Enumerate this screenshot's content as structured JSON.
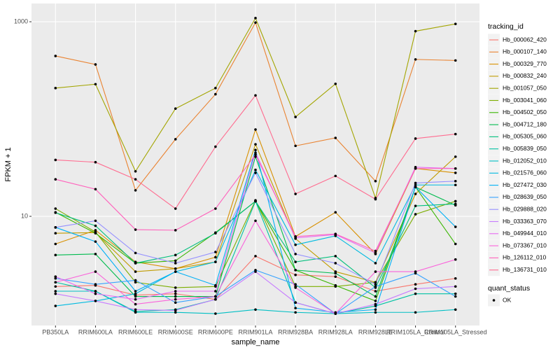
{
  "chart_data": {
    "type": "line",
    "log_y": true,
    "grid": true,
    "x_label": "sample_name",
    "y_label": "FPKM + 1",
    "legend_title": "tracking_id",
    "shape_legend": {
      "title": "quant_status",
      "items": [
        "OK"
      ]
    },
    "point_color": "#000000",
    "categories": [
      "PB350LA",
      "RRIM600LA",
      "RRIM600LE",
      "RRIM600SE",
      "RRIM600PE",
      "RRIM901LA",
      "RRIM928BA",
      "RRIM928LA",
      "RRIM928LE",
      "RRIM105LA_Control",
      "RRIM105LA_Stressed"
    ],
    "ylim": [
      0.755,
      1540
    ],
    "yticks": [
      10,
      1000
    ],
    "series": [
      {
        "name": "Hb_000062_420",
        "color": "#F8766D",
        "values": [
          1.9,
          1.95,
          1.55,
          1.6,
          1.4,
          3.9,
          2.5,
          2.4,
          1.7,
          2.0,
          2.3
        ]
      },
      {
        "name": "Hb_000107_140",
        "color": "#EA8331",
        "values": [
          445,
          364,
          18.5,
          62,
          180,
          980,
          53,
          64,
          23,
          410,
          400
        ]
      },
      {
        "name": "Hb_000329_770",
        "color": "#D89000",
        "values": [
          5.2,
          7.2,
          3.4,
          2.9,
          3.8,
          78,
          6.2,
          11,
          4.1,
          31,
          28
        ]
      },
      {
        "name": "Hb_000832_240",
        "color": "#C09B00",
        "values": [
          6.7,
          6.8,
          2.7,
          2.9,
          3.4,
          55,
          5.9,
          2.7,
          2.1,
          17,
          41
        ]
      },
      {
        "name": "Hb_001057_050",
        "color": "#A3A500",
        "values": [
          208,
          228,
          29,
          128,
          208,
          1090,
          105,
          230,
          15.4,
          800,
          950
        ]
      },
      {
        "name": "Hb_003041_060",
        "color": "#7CAE00",
        "values": [
          12,
          6.9,
          2.1,
          1.85,
          1.9,
          14.6,
          1.9,
          1.9,
          2.1,
          10.5,
          14.3
        ]
      },
      {
        "name": "Hb_004502_050",
        "color": "#39B600",
        "values": [
          11,
          6.7,
          3.3,
          3.5,
          6.8,
          14.3,
          2.8,
          1.95,
          1.35,
          20,
          5.2
        ]
      },
      {
        "name": "Hb_004712_180",
        "color": "#00BB4E",
        "values": [
          4.0,
          4.1,
          1.5,
          1.5,
          1.5,
          41,
          2.8,
          2.6,
          1.5,
          20,
          13
        ]
      },
      {
        "name": "Hb_005305_060",
        "color": "#00BF7D",
        "values": [
          10.9,
          8.0,
          3.3,
          4.0,
          6.7,
          14.3,
          3.4,
          3.9,
          1.85,
          12.8,
          13.4
        ]
      },
      {
        "name": "Hb_005839_050",
        "color": "#00C1A3",
        "values": [
          2.1,
          1.7,
          1.05,
          1.1,
          1.4,
          14.3,
          1.3,
          1.0,
          1.2,
          1.6,
          1.6
        ]
      },
      {
        "name": "Hb_012052_010",
        "color": "#00BFC4",
        "values": [
          1.7,
          1.7,
          1.03,
          1.03,
          1.0,
          1.1,
          1.03,
          1.0,
          1.03,
          1.03,
          1.1
        ]
      },
      {
        "name": "Hb_021576_060",
        "color": "#00BAE0",
        "values": [
          1.2,
          1.35,
          1.6,
          2.7,
          3.4,
          30,
          5.1,
          6.3,
          3.3,
          21,
          21
        ]
      },
      {
        "name": "Hb_027472_030",
        "color": "#00B0F6",
        "values": [
          7.7,
          5.5,
          1.7,
          2.7,
          1.95,
          48,
          1.14,
          1.03,
          1.1,
          20,
          7.8
        ]
      },
      {
        "name": "Hb_028639_050",
        "color": "#35A2FF",
        "values": [
          2.3,
          2.0,
          2.2,
          1.3,
          1.5,
          2.8,
          2.0,
          1.0,
          1.9,
          2.6,
          1.5
        ]
      },
      {
        "name": "Hb_029888_020",
        "color": "#9590FF",
        "values": [
          7.7,
          9.0,
          4.2,
          3.3,
          4.3,
          28,
          4.1,
          3.3,
          2.0,
          22,
          23
        ]
      },
      {
        "name": "Hb_033363_070",
        "color": "#C77CFF",
        "values": [
          1.6,
          1.35,
          1.1,
          1.08,
          1.4,
          2.7,
          1.3,
          1.0,
          1.25,
          1.8,
          1.9
        ]
      },
      {
        "name": "Hb_049944_010",
        "color": "#E76BF3",
        "values": [
          2.4,
          1.6,
          1.4,
          1.7,
          1.7,
          45,
          6.0,
          6.5,
          4.2,
          32,
          31
        ]
      },
      {
        "name": "Hb_073367_010",
        "color": "#FA62DB",
        "values": [
          2.1,
          2.7,
          1.25,
          1.4,
          1.5,
          9.0,
          1.85,
          1.0,
          2.7,
          2.7,
          3.6
        ]
      },
      {
        "name": "Hb_126112_010",
        "color": "#FF62BC",
        "values": [
          24,
          19,
          7.3,
          7.2,
          12,
          43,
          6.2,
          6.6,
          4.4,
          31,
          31
        ]
      },
      {
        "name": "Hb_136731_010",
        "color": "#FF6C90",
        "values": [
          38,
          36,
          24,
          12,
          52,
          175,
          17,
          26,
          15,
          63,
          70
        ]
      }
    ]
  }
}
